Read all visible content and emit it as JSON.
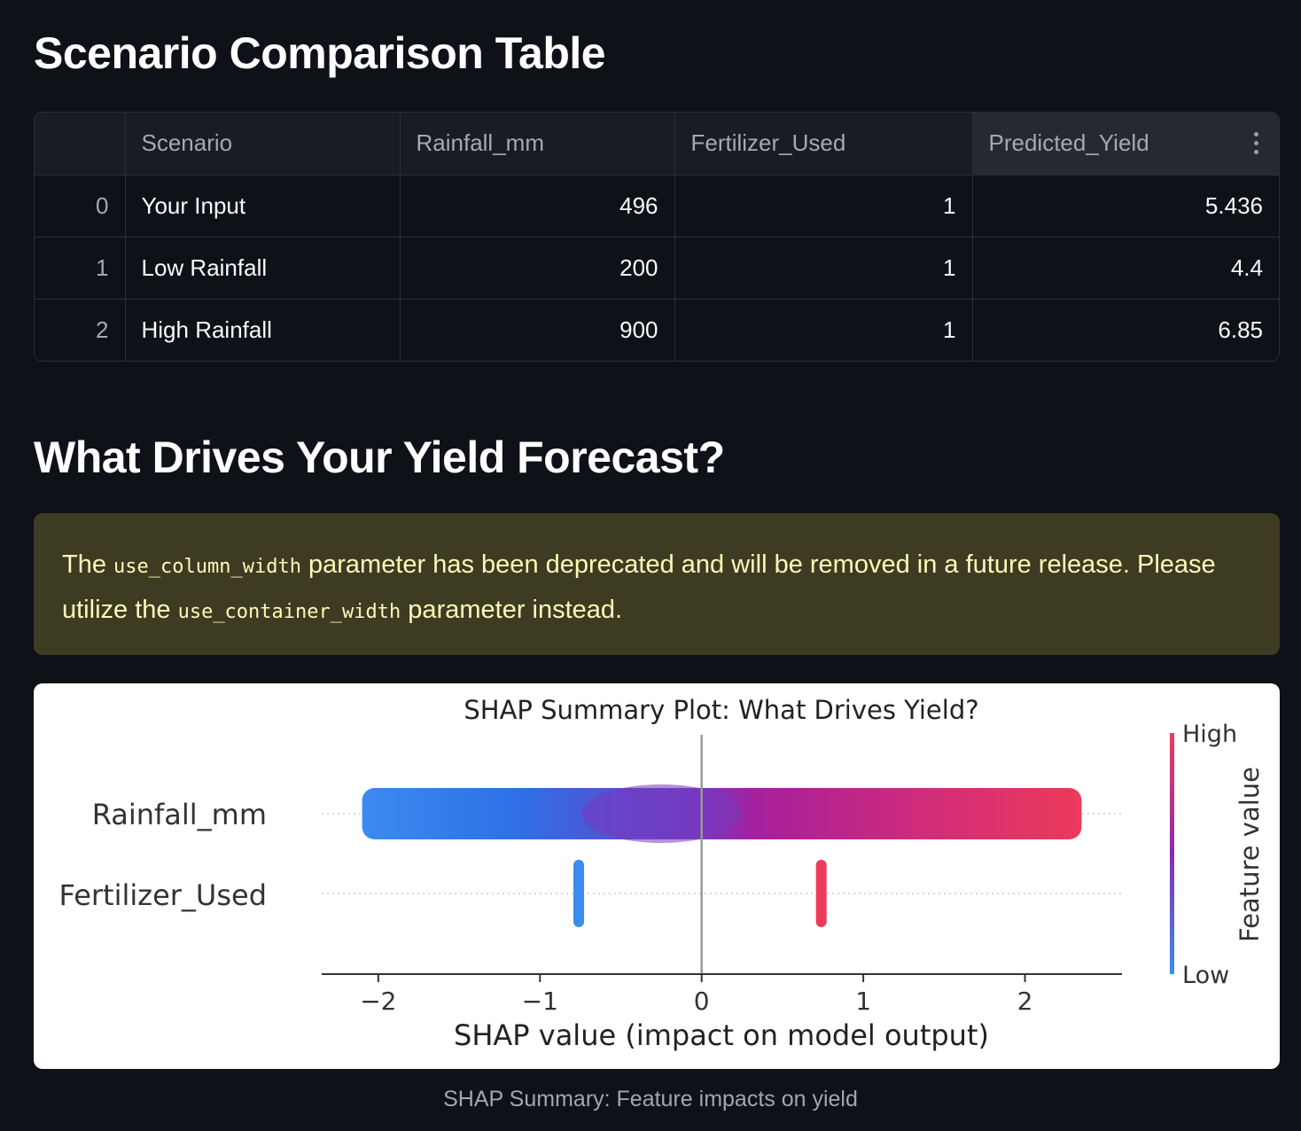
{
  "headings": {
    "comparison": "Scenario Comparison Table",
    "drivers": "What Drives Your Yield Forecast?"
  },
  "table": {
    "columns": [
      "",
      "Scenario",
      "Rainfall_mm",
      "Fertilizer_Used",
      "Predicted_Yield"
    ],
    "rows": [
      {
        "index": "0",
        "scenario": "Your Input",
        "rainfall": "496",
        "fertilizer": "1",
        "yield": "5.436"
      },
      {
        "index": "1",
        "scenario": "Low Rainfall",
        "rainfall": "200",
        "fertilizer": "1",
        "yield": "4.4"
      },
      {
        "index": "2",
        "scenario": "High Rainfall",
        "rainfall": "900",
        "fertilizer": "1",
        "yield": "6.85"
      }
    ],
    "menu_icon": "more-vertical-icon"
  },
  "warning": {
    "part1": "The ",
    "code1": "use_column_width",
    "part2": " parameter has been deprecated and will be removed in a future release. Please utilize the ",
    "code2": "use_container_width",
    "part3": " parameter instead."
  },
  "chart_data": {
    "type": "scatter",
    "title": "SHAP Summary Plot: What Drives Yield?",
    "xlabel": "SHAP value (impact on model output)",
    "features": [
      "Rainfall_mm",
      "Fertilizer_Used"
    ],
    "xlim": [
      -2.35,
      2.6
    ],
    "xticks": [
      -2,
      -1,
      0,
      1,
      2
    ],
    "xtick_labels": [
      "−2",
      "−1",
      "0",
      "1",
      "2"
    ],
    "series": [
      {
        "feature": "Rainfall_mm",
        "range": [
          -2.1,
          2.35
        ],
        "color": "gradient"
      },
      {
        "feature": "Fertilizer_Used",
        "cluster_low": {
          "x": -0.76,
          "color": "#3b8bf0"
        },
        "cluster_high": {
          "x": 0.74,
          "color": "#ec3a5a"
        }
      }
    ],
    "colorbar": {
      "label": "Feature value",
      "high": "High",
      "low": "Low",
      "colors": [
        "#3b8bf0",
        "#8b2bb0",
        "#ec3a5a"
      ]
    }
  },
  "caption": "SHAP Summary: Feature impacts on yield"
}
